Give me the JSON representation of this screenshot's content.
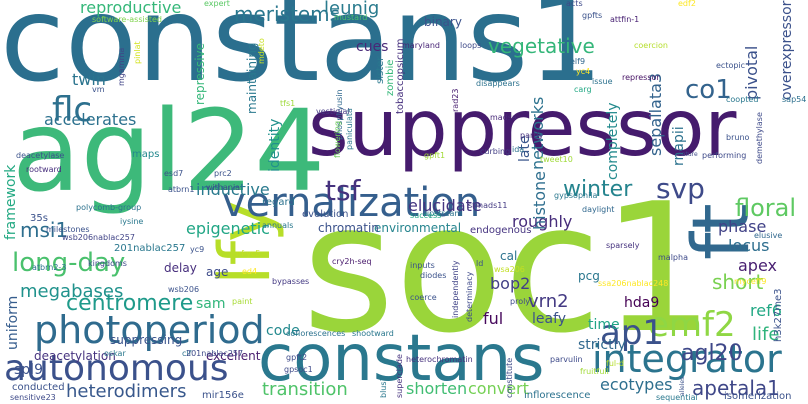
{
  "words": [
    {
      "id": "constans1",
      "text": "constans1",
      "color": "#2b6f8e"
    },
    {
      "id": "soc1",
      "text": "soc1",
      "color": "#9ad53a"
    },
    {
      "id": "agl24",
      "text": "agl24",
      "color": "#3db97a"
    },
    {
      "id": "suppressor",
      "text": "suppressor",
      "color": "#451b6d"
    },
    {
      "id": "constans",
      "text": "constans",
      "color": "#2a788e"
    },
    {
      "id": "lfy",
      "text": "lfy",
      "color": "#b7de28"
    },
    {
      "id": "ft",
      "text": "ft",
      "color": "#31688e"
    },
    {
      "id": "vernalization",
      "text": "vernalization",
      "color": "#355f8d"
    },
    {
      "id": "photoperiod",
      "text": "photoperiod",
      "color": "#2f6b8e"
    },
    {
      "id": "autonomous",
      "text": "autonomous",
      "color": "#3b518b"
    },
    {
      "id": "integrator",
      "text": "integrator",
      "color": "#2b748e"
    },
    {
      "id": "emf2",
      "text": "emf2",
      "color": "#8fd744"
    },
    {
      "id": "ap1",
      "text": "ap1",
      "color": "#3b528b"
    },
    {
      "id": "long-day",
      "text": "long-day",
      "color": "#4ac16d"
    },
    {
      "id": "flc",
      "text": "flc",
      "color": "#2d708e"
    },
    {
      "id": "tsf",
      "text": "tsf",
      "color": "#46327e"
    },
    {
      "id": "svp",
      "text": "svp",
      "color": "#3e4a89"
    },
    {
      "id": "winter",
      "text": "winter",
      "color": "#25848e"
    },
    {
      "id": "floral",
      "text": "floral",
      "color": "#5ec962"
    },
    {
      "id": "agl20",
      "text": "agl20",
      "color": "#3f4889"
    },
    {
      "id": "centromere",
      "text": "centromere",
      "color": "#1f9a8a"
    },
    {
      "id": "megabases",
      "text": "megabases",
      "color": "#20928c"
    },
    {
      "id": "co1",
      "text": "co1",
      "color": "#33638d"
    },
    {
      "id": "msi1",
      "text": "msi1",
      "color": "#2e6e8e"
    },
    {
      "id": "heterodimers",
      "text": "heterodimers",
      "color": "#38588c"
    },
    {
      "id": "transition",
      "text": "transition",
      "color": "#4fc369"
    },
    {
      "id": "apetala1",
      "text": "apetala1",
      "color": "#3f4788"
    },
    {
      "id": "ecotypes",
      "text": "ecotypes",
      "color": "#2e6f8e"
    },
    {
      "id": "shorten",
      "text": "shorten",
      "color": "#40bd72"
    },
    {
      "id": "convert",
      "text": "convert",
      "color": "#75d054"
    },
    {
      "id": "reproductive",
      "text": "reproductive",
      "color": "#35b779"
    },
    {
      "id": "meristems",
      "text": "meristems",
      "color": "#2a778e"
    },
    {
      "id": "leunig",
      "text": "leunig",
      "color": "#2a7b8e"
    },
    {
      "id": "vegetative",
      "text": "vegetative",
      "color": "#34b679"
    },
    {
      "id": "twin",
      "text": "twin",
      "color": "#2b748e"
    },
    {
      "id": "accelerates",
      "text": "accelerates",
      "color": "#2c718e"
    },
    {
      "id": "inductive",
      "text": "inductive",
      "color": "#297a8e"
    },
    {
      "id": "epigenetic",
      "text": "epigenetic",
      "color": "#21a685"
    },
    {
      "id": "elucidate",
      "text": "elucidate",
      "color": "#453581"
    },
    {
      "id": "roughly",
      "text": "roughly",
      "color": "#472d7b"
    },
    {
      "id": "phase",
      "text": "phase",
      "color": "#414287"
    },
    {
      "id": "locus",
      "text": "locus",
      "color": "#2e6e8e"
    },
    {
      "id": "apex",
      "text": "apex",
      "color": "#481f71"
    },
    {
      "id": "short",
      "text": "short",
      "color": "#7ad151"
    },
    {
      "id": "ref6",
      "text": "ref6",
      "color": "#22a884"
    },
    {
      "id": "life",
      "text": "life",
      "color": "#2fb47c"
    },
    {
      "id": "hda9",
      "text": "hda9",
      "color": "#440154"
    },
    {
      "id": "vrn2",
      "text": "vrn2",
      "color": "#443a83"
    },
    {
      "id": "leafy",
      "text": "leafy",
      "color": "#3b528b"
    },
    {
      "id": "bop2",
      "text": "bop2",
      "color": "#424086"
    },
    {
      "id": "ful",
      "text": "ful",
      "color": "#46085c"
    },
    {
      "id": "cal",
      "text": "cal",
      "color": "#2c728e"
    },
    {
      "id": "pcg",
      "text": "pcg",
      "color": "#2a778e"
    },
    {
      "id": "time",
      "text": "time",
      "color": "#20a486"
    },
    {
      "id": "strictly",
      "text": "strictly",
      "color": "#31688e"
    },
    {
      "id": "code",
      "text": "code",
      "color": "#23898e"
    },
    {
      "id": "sam",
      "text": "sam",
      "color": "#31b57b"
    },
    {
      "id": "age",
      "text": "age",
      "color": "#3e4c8a"
    },
    {
      "id": "uniform",
      "text": "uniform",
      "color": "#365d8d"
    },
    {
      "id": "spl9",
      "text": "spl9",
      "color": "#3b518b"
    },
    {
      "id": "suppressing",
      "text": "suppressing",
      "color": "#3a548c"
    },
    {
      "id": "delay",
      "text": "delay",
      "color": "#472f7d"
    },
    {
      "id": "excellent",
      "text": "excellent",
      "color": "#481d6f"
    },
    {
      "id": "deacetylation",
      "text": "deacetylation",
      "color": "#46337f"
    },
    {
      "id": "framework",
      "text": "framework",
      "color": "#23a983"
    },
    {
      "id": "identity",
      "text": "identity",
      "color": "#21918c"
    },
    {
      "id": "networks",
      "text": "networks",
      "color": "#2c728e"
    },
    {
      "id": "histone",
      "text": "histone",
      "color": "#2e6e8e"
    },
    {
      "id": "completely",
      "text": "completely",
      "color": "#238a8d"
    },
    {
      "id": "late",
      "text": "late",
      "color": "#39568c"
    },
    {
      "id": "sepallata3",
      "text": "sepallata3",
      "color": "#33638d"
    },
    {
      "id": "rnapii",
      "text": "rnapii",
      "color": "#2c728e"
    },
    {
      "id": "pivotal",
      "text": "pivotal",
      "color": "#3b518b"
    },
    {
      "id": "overexpressor",
      "text": "overexpressor",
      "color": "#3b518b"
    },
    {
      "id": "cues",
      "text": "cues",
      "color": "#482878"
    },
    {
      "id": "binary",
      "text": "binary",
      "color": "#3b528b"
    },
    {
      "id": "repressive",
      "text": "repressive",
      "color": "#35b779"
    },
    {
      "id": "mustard",
      "text": "mustard",
      "color": "#4ac16d"
    },
    {
      "id": "software-assisted",
      "text": "software-assisted",
      "color": "#7fd34e"
    },
    {
      "id": "expert",
      "text": "expert",
      "color": "#5ac864"
    },
    {
      "id": "gpfts",
      "text": "gpfts",
      "color": "#3b528b"
    },
    {
      "id": "attfin-1",
      "text": "attfin-1",
      "color": "#482173"
    },
    {
      "id": "acts",
      "text": "acts",
      "color": "#3e4a89"
    },
    {
      "id": "maryland",
      "text": "maryland",
      "color": "#482576"
    },
    {
      "id": "loops",
      "text": "loops",
      "color": "#3e4a89"
    },
    {
      "id": "elf9",
      "text": "elf9",
      "color": "#31688e"
    },
    {
      "id": "repressor",
      "text": "repressor",
      "color": "#471365"
    },
    {
      "id": "ectopic",
      "text": "ectopic",
      "color": "#3b528b"
    },
    {
      "id": "coopted",
      "text": "coopted",
      "color": "#2a788e"
    },
    {
      "id": "sap54",
      "text": "sap54",
      "color": "#2d708e"
    },
    {
      "id": "coercion",
      "text": "coercion",
      "color": "#b5de2b"
    },
    {
      "id": "carg",
      "text": "carg",
      "color": "#22a884"
    },
    {
      "id": "issue",
      "text": "issue",
      "color": "#2c728e"
    },
    {
      "id": "disappears",
      "text": "disappears",
      "color": "#2c728e"
    },
    {
      "id": "sister",
      "text": "sister",
      "color": "#2a788e"
    },
    {
      "id": "zombie",
      "text": "zombie",
      "color": "#35b779"
    },
    {
      "id": "tobacco",
      "text": "tobaccopsicum",
      "color": "#46307e"
    },
    {
      "id": "yc4",
      "text": "yc4",
      "color": "#fde725"
    },
    {
      "id": "pinlat",
      "text": "pinlat",
      "color": "#d2e21b"
    },
    {
      "id": "mgamma",
      "text": "mgamma",
      "color": "#414487"
    },
    {
      "id": "vm",
      "text": "vm",
      "color": "#3b528b"
    },
    {
      "id": "maintaining",
      "text": "maintaining",
      "color": "#2a788e"
    },
    {
      "id": "mdeto",
      "text": "mdeto",
      "color": "#c8e020"
    },
    {
      "id": "tfs1",
      "text": "tfs1",
      "color": "#9fda3a"
    },
    {
      "id": "phosphyusin",
      "text": "phosphyusin",
      "color": "#31688e"
    },
    {
      "id": "vestigial",
      "text": "vestigial",
      "color": "#443983"
    },
    {
      "id": "madsa",
      "text": "madsa",
      "color": "#482979"
    },
    {
      "id": "rad23",
      "text": "rad23",
      "color": "#481f70"
    },
    {
      "id": "paniculata",
      "text": "paniculata",
      "color": "#2a788e"
    },
    {
      "id": "flowering",
      "text": "flowering",
      "color": "#6ece58"
    },
    {
      "id": "gpft1",
      "text": "gpft1",
      "color": "#a2da37"
    },
    {
      "id": "curbing",
      "text": "curbing",
      "color": "#433e85"
    },
    {
      "id": "ida",
      "text": "ida",
      "color": "#2c728e"
    },
    {
      "id": "partly",
      "text": "partly",
      "color": "#46327e"
    },
    {
      "id": "tweet10",
      "text": "tweet10",
      "color": "#a0da39"
    },
    {
      "id": "nature",
      "text": "nature",
      "color": "#3e4a89"
    },
    {
      "id": "performing",
      "text": "performing",
      "color": "#3e4a89"
    },
    {
      "id": "bruno",
      "text": "bruno",
      "color": "#3b528b"
    },
    {
      "id": "demethylase",
      "text": "demethylase",
      "color": "#3e4a89"
    },
    {
      "id": "elusive",
      "text": "elusive",
      "color": "#31688e"
    },
    {
      "id": "myceff9",
      "text": "myceff9",
      "color": "#fde725"
    },
    {
      "id": "h3k27me3",
      "text": "h3k27me3",
      "color": "#3b528b"
    },
    {
      "id": "malpha",
      "text": "malpha",
      "color": "#3e4a89"
    },
    {
      "id": "daylight",
      "text": "daylight",
      "color": "#31688e"
    },
    {
      "id": "gypsophila",
      "text": "gypsophila",
      "color": "#2a788e"
    },
    {
      "id": "upstream",
      "text": "upstream",
      "color": "#2c728e"
    },
    {
      "id": "success",
      "text": "success",
      "color": "#22a884"
    },
    {
      "id": "stmads11",
      "text": "stmads11",
      "color": "#443a83"
    },
    {
      "id": "sparsely",
      "text": "sparsely",
      "color": "#46337f"
    },
    {
      "id": "endogenous",
      "text": "endogenous",
      "color": "#463480"
    },
    {
      "id": "environmental",
      "text": "environmental",
      "color": "#25848e"
    },
    {
      "id": "chromatin",
      "text": "chromatin",
      "color": "#3b528b"
    },
    {
      "id": "annuals",
      "text": "annuals",
      "color": "#2a788e"
    },
    {
      "id": "evolution",
      "text": "evolution",
      "color": "#3b528b"
    },
    {
      "id": "regard",
      "text": "regard",
      "color": "#2c728e"
    },
    {
      "id": "prc2",
      "text": "prc2",
      "color": "#3b528b"
    },
    {
      "id": "esd7",
      "text": "esd7",
      "color": "#3b528b"
    },
    {
      "id": "withania",
      "text": "withania",
      "color": "#3e4a89"
    },
    {
      "id": "atbrn1",
      "text": "atbrn1",
      "color": "#3b528b"
    },
    {
      "id": "polycomb-group",
      "text": "polycomb-group",
      "color": "#2c728e"
    },
    {
      "id": "maps",
      "text": "maps",
      "color": "#23898e"
    },
    {
      "id": "deacetylase",
      "text": "deacetylase",
      "color": "#3b528b"
    },
    {
      "id": "rootward",
      "text": "rootward",
      "color": "#472f7d"
    },
    {
      "id": "35s",
      "text": "35s",
      "color": "#3b528b"
    },
    {
      "id": "201nablac257",
      "text": "201nablac257",
      "color": "#2a788e"
    },
    {
      "id": "kingdoms",
      "text": "kingdoms",
      "color": "#3e4a89"
    },
    {
      "id": "iysine",
      "text": "iysine",
      "color": "#2a788e"
    },
    {
      "id": "milestones",
      "text": "milestones",
      "color": "#3b528b"
    },
    {
      "id": "atbrn2-3",
      "text": "atbrn2-3",
      "color": "#2c728e"
    },
    {
      "id": "wsb206nablac257",
      "text": "wsb206nablac257",
      "color": "#414487"
    },
    {
      "id": "wsb206",
      "text": "wsb206",
      "color": "#3b528b"
    },
    {
      "id": "cry2h-seq",
      "text": "cry2h-seq",
      "color": "#481a6c"
    },
    {
      "id": "bypasses",
      "text": "bypasses",
      "color": "#443983"
    },
    {
      "id": "paint",
      "text": "paint",
      "color": "#a8db34"
    },
    {
      "id": "nf-yc5",
      "text": "nf-yc5",
      "color": "#c2df23"
    },
    {
      "id": "yc9",
      "text": "yc9",
      "color": "#3b528b"
    },
    {
      "id": "ed4",
      "text": "ed4",
      "color": "#fde725"
    },
    {
      "id": "inputs",
      "text": "inputs",
      "color": "#3b528b"
    },
    {
      "id": "diodes",
      "text": "diodes",
      "color": "#3b528b"
    },
    {
      "id": "coerce",
      "text": "coerce",
      "color": "#3b528b"
    },
    {
      "id": "independently",
      "text": "independently",
      "color": "#414487"
    },
    {
      "id": "determinacy",
      "text": "determinacy",
      "color": "#3e4a89"
    },
    {
      "id": "ld",
      "text": "ld",
      "color": "#3b528b"
    },
    {
      "id": "wsa206",
      "text": "wsa206",
      "color": "#c2df23"
    },
    {
      "id": "prolyl",
      "text": "prolyl",
      "color": "#3e4a89"
    },
    {
      "id": "parvulin",
      "text": "parvulin",
      "color": "#3e4a89"
    },
    {
      "id": "heterochromatin",
      "text": "heterochromatin",
      "color": "#46327e"
    },
    {
      "id": "ssa206",
      "text": "ssa206nablac248",
      "color": "#fde725"
    },
    {
      "id": "coflorescences",
      "text": "coflorescences",
      "color": "#2c728e"
    },
    {
      "id": "shootward",
      "text": "shootward",
      "color": "#2a788e"
    },
    {
      "id": "clf",
      "text": "clf",
      "color": "#2c728e"
    },
    {
      "id": "oskar",
      "text": "oskar",
      "color": "#2a788e"
    },
    {
      "id": "201nablac257b",
      "text": "201nablac257",
      "color": "#3e4a89"
    },
    {
      "id": "gpft2",
      "text": "gpft2",
      "color": "#3e4a89"
    },
    {
      "id": "gpsoc1",
      "text": "gpsoc1",
      "color": "#3e4a89"
    },
    {
      "id": "superclade",
      "text": "superclade",
      "color": "#46327e"
    },
    {
      "id": "blus1",
      "text": "blus1",
      "color": "#2a788e"
    },
    {
      "id": "fruitfull",
      "text": "fruitfull",
      "color": "#a2da37"
    },
    {
      "id": "ful-d",
      "text": "ful-d",
      "color": "#b5de2b"
    },
    {
      "id": "inflorescence",
      "text": "inflorescence",
      "color": "#2c728e"
    },
    {
      "id": "constitute",
      "text": "constitute",
      "color": "#3e4a89"
    },
    {
      "id": "conducted",
      "text": "conducted",
      "color": "#3b528b"
    },
    {
      "id": "sensitive23",
      "text": "sensitive23",
      "color": "#3e4a89"
    },
    {
      "id": "mir156e",
      "text": "mir156e",
      "color": "#3b528b"
    },
    {
      "id": "sequential",
      "text": "sequential",
      "color": "#2a788e"
    },
    {
      "id": "alleles",
      "text": "alleles",
      "color": "#3b528b"
    },
    {
      "id": "isomerization",
      "text": "isomerization",
      "color": "#3b528b"
    },
    {
      "id": "edf2",
      "text": "edf2",
      "color": "#fde725"
    }
  ]
}
